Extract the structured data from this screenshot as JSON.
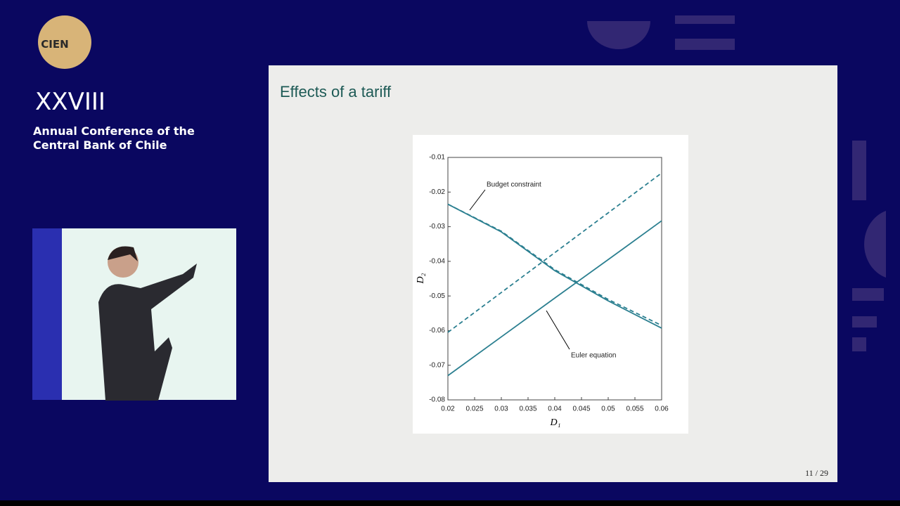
{
  "logo": {
    "text": "CIEN"
  },
  "conference": {
    "number": "XXVIII",
    "line1": "Annual Conference of the",
    "line2": "Central Bank of Chile"
  },
  "slide": {
    "title": "Effects of a tariff",
    "page": "11 / 29"
  },
  "chart_data": {
    "type": "line",
    "x": [
      0.02,
      0.03,
      0.04,
      0.05,
      0.06
    ],
    "series": [
      {
        "color": "#2b7f90",
        "dashed": false,
        "values": [
          -0.0235,
          -0.0315,
          -0.0427,
          -0.0514,
          -0.0593
        ]
      },
      {
        "color": "#2b7f90",
        "dashed": true,
        "values": [
          -0.0235,
          -0.0313,
          -0.0424,
          -0.051,
          -0.0585
        ]
      },
      {
        "color": "#2b7f90",
        "dashed": false,
        "values": [
          -0.073,
          -0.0618,
          -0.0506,
          -0.0395,
          -0.0283
        ]
      },
      {
        "color": "#2b7f90",
        "dashed": true,
        "values": [
          -0.0605,
          -0.049,
          -0.0375,
          -0.026,
          -0.0145
        ]
      }
    ],
    "annotations": [
      "Budget constraint",
      "Euler equation"
    ],
    "x_label": "D₁",
    "y_label": "D₂",
    "xlim": [
      0.02,
      0.06
    ],
    "xticks": [
      0.02,
      0.025,
      0.03,
      0.035,
      0.04,
      0.045,
      0.05,
      0.055,
      0.06
    ],
    "ylim": [
      -0.08,
      -0.01
    ],
    "yticks": [
      -0.08,
      -0.07,
      -0.06,
      -0.05,
      -0.04,
      -0.03,
      -0.02,
      -0.01
    ]
  }
}
